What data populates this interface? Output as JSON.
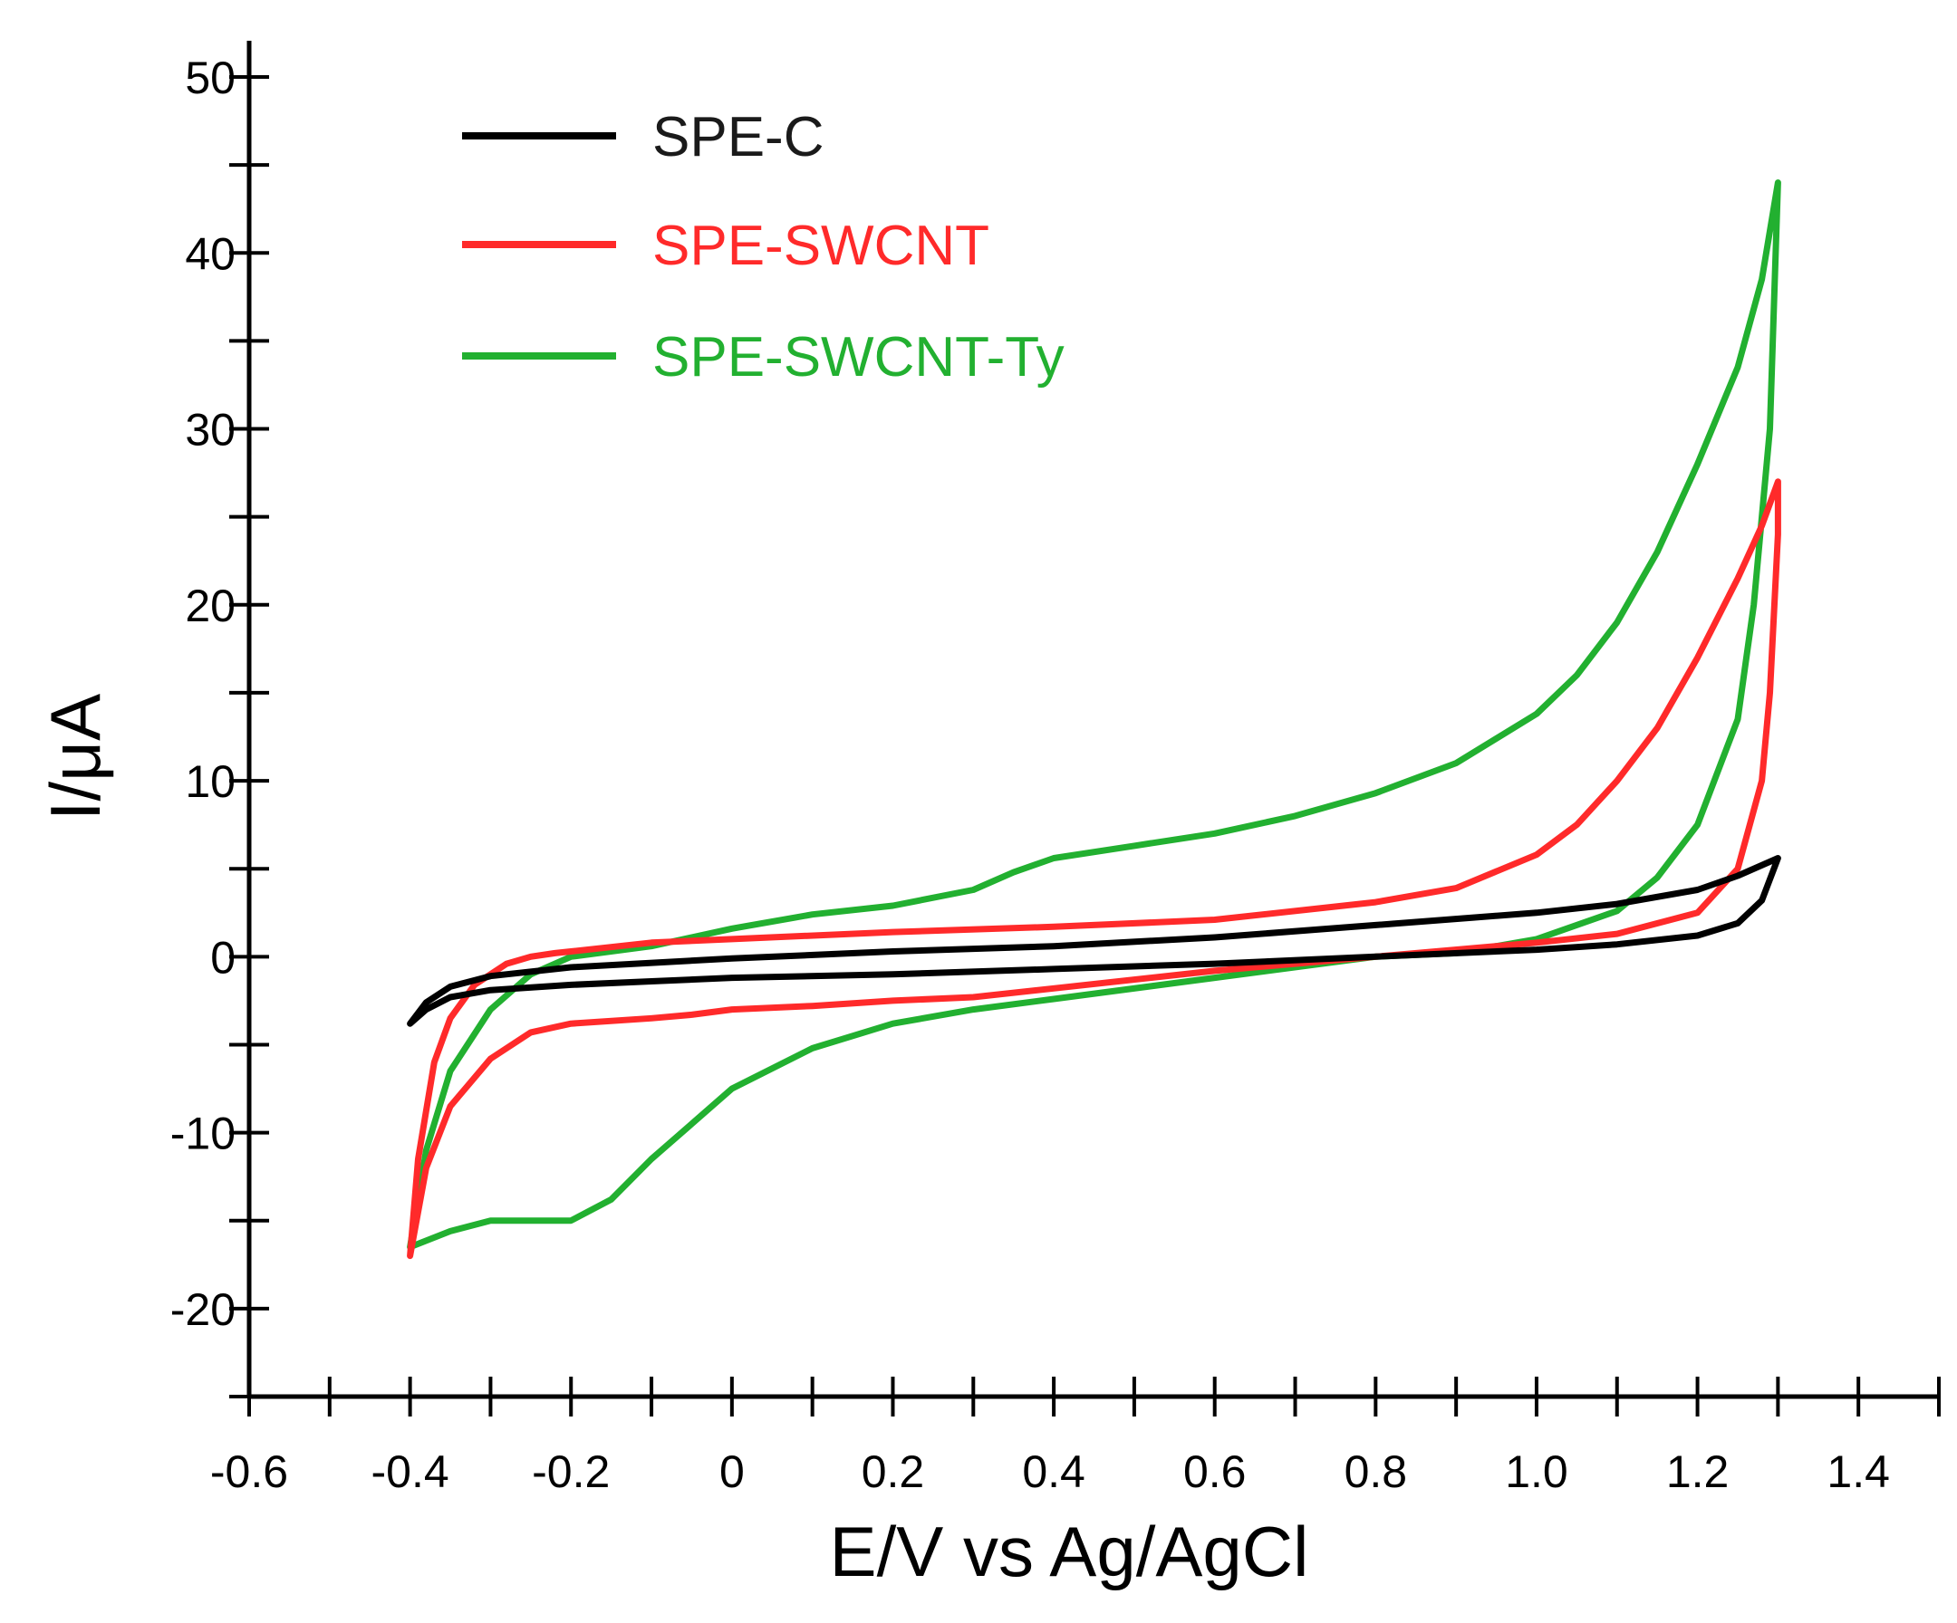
{
  "chart_data": {
    "type": "line",
    "title": "",
    "xlabel": "E/V vs Ag/AgCl",
    "ylabel": "I/μA",
    "xlim": [
      -0.6,
      1.5
    ],
    "ylim": [
      -25,
      50
    ],
    "x_ticks": [
      -0.6,
      -0.4,
      -0.2,
      0,
      0.2,
      0.4,
      0.6,
      0.8,
      1.0,
      1.2,
      1.4
    ],
    "x_tick_labels": [
      "-0.6",
      "-0.4",
      "-0.2",
      "0",
      "0.2",
      "0.4",
      "0.6",
      "0.8",
      "1.0",
      "1.2",
      "1.4"
    ],
    "x_minor_ticks": [
      -0.5,
      -0.3,
      -0.1,
      0.1,
      0.3,
      0.5,
      0.7,
      0.9,
      1.1,
      1.3,
      1.5
    ],
    "y_ticks": [
      -20,
      -10,
      0,
      10,
      20,
      30,
      40,
      50
    ],
    "y_tick_labels": [
      "-20",
      "-10",
      "0",
      "10",
      "20",
      "30",
      "40",
      "50"
    ],
    "y_minor_ticks": [
      -25,
      -15,
      -5,
      5,
      15,
      25,
      35,
      45
    ],
    "legend_position": "top-left",
    "series": [
      {
        "name": "SPE-C",
        "color": "#000000",
        "points": [
          [
            -0.4,
            -3.8
          ],
          [
            -0.38,
            -3.0
          ],
          [
            -0.35,
            -2.3
          ],
          [
            -0.3,
            -1.9
          ],
          [
            -0.2,
            -1.6
          ],
          [
            -0.1,
            -1.4
          ],
          [
            0.0,
            -1.2
          ],
          [
            0.2,
            -1.0
          ],
          [
            0.4,
            -0.7
          ],
          [
            0.6,
            -0.4
          ],
          [
            0.8,
            0.0
          ],
          [
            1.0,
            0.4
          ],
          [
            1.1,
            0.7
          ],
          [
            1.2,
            1.2
          ],
          [
            1.25,
            1.9
          ],
          [
            1.28,
            3.2
          ],
          [
            1.3,
            5.6
          ],
          [
            1.25,
            4.6
          ],
          [
            1.2,
            3.8
          ],
          [
            1.1,
            3.0
          ],
          [
            1.0,
            2.5
          ],
          [
            0.8,
            1.8
          ],
          [
            0.6,
            1.1
          ],
          [
            0.4,
            0.6
          ],
          [
            0.2,
            0.3
          ],
          [
            0.0,
            -0.1
          ],
          [
            -0.2,
            -0.6
          ],
          [
            -0.3,
            -1.1
          ],
          [
            -0.35,
            -1.7
          ],
          [
            -0.38,
            -2.6
          ],
          [
            -0.4,
            -3.8
          ]
        ]
      },
      {
        "name": "SPE-SWCNT",
        "color": "#ff2a2a",
        "points": [
          [
            -0.4,
            -17.0
          ],
          [
            -0.39,
            -11.5
          ],
          [
            -0.37,
            -6.0
          ],
          [
            -0.35,
            -3.5
          ],
          [
            -0.32,
            -1.6
          ],
          [
            -0.28,
            -0.4
          ],
          [
            -0.25,
            0.0
          ],
          [
            -0.22,
            0.2
          ],
          [
            -0.2,
            0.3
          ],
          [
            -0.1,
            0.8
          ],
          [
            0.0,
            1.0
          ],
          [
            0.2,
            1.4
          ],
          [
            0.4,
            1.7
          ],
          [
            0.6,
            2.1
          ],
          [
            0.8,
            3.1
          ],
          [
            0.9,
            3.9
          ],
          [
            1.0,
            5.8
          ],
          [
            1.05,
            7.5
          ],
          [
            1.1,
            10.0
          ],
          [
            1.15,
            13.0
          ],
          [
            1.2,
            17.0
          ],
          [
            1.25,
            21.5
          ],
          [
            1.28,
            24.5
          ],
          [
            1.3,
            27.0
          ],
          [
            1.3,
            24.0
          ],
          [
            1.29,
            15.0
          ],
          [
            1.28,
            10.0
          ],
          [
            1.25,
            5.0
          ],
          [
            1.2,
            2.5
          ],
          [
            1.1,
            1.3
          ],
          [
            1.0,
            0.8
          ],
          [
            0.8,
            0.0
          ],
          [
            0.6,
            -0.8
          ],
          [
            0.4,
            -1.8
          ],
          [
            0.3,
            -2.3
          ],
          [
            0.2,
            -2.5
          ],
          [
            0.1,
            -2.8
          ],
          [
            0.0,
            -3.0
          ],
          [
            -0.05,
            -3.3
          ],
          [
            -0.1,
            -3.5
          ],
          [
            -0.2,
            -3.8
          ],
          [
            -0.25,
            -4.3
          ],
          [
            -0.3,
            -5.8
          ],
          [
            -0.35,
            -8.5
          ],
          [
            -0.38,
            -12.0
          ],
          [
            -0.4,
            -17.0
          ]
        ]
      },
      {
        "name": "SPE-SWCNT-Ty",
        "color": "#22b030",
        "points": [
          [
            -0.4,
            -16.5
          ],
          [
            -0.38,
            -11.0
          ],
          [
            -0.35,
            -6.5
          ],
          [
            -0.3,
            -3.0
          ],
          [
            -0.25,
            -1.0
          ],
          [
            -0.2,
            0.0
          ],
          [
            -0.1,
            0.6
          ],
          [
            0.0,
            1.6
          ],
          [
            0.1,
            2.4
          ],
          [
            0.2,
            2.9
          ],
          [
            0.3,
            3.8
          ],
          [
            0.35,
            4.8
          ],
          [
            0.4,
            5.6
          ],
          [
            0.5,
            6.3
          ],
          [
            0.6,
            7.0
          ],
          [
            0.7,
            8.0
          ],
          [
            0.8,
            9.3
          ],
          [
            0.9,
            11.0
          ],
          [
            1.0,
            13.8
          ],
          [
            1.05,
            16.0
          ],
          [
            1.1,
            19.0
          ],
          [
            1.15,
            23.0
          ],
          [
            1.2,
            28.0
          ],
          [
            1.25,
            33.5
          ],
          [
            1.28,
            38.5
          ],
          [
            1.3,
            44.0
          ],
          [
            1.29,
            30.0
          ],
          [
            1.27,
            20.0
          ],
          [
            1.25,
            13.5
          ],
          [
            1.2,
            7.5
          ],
          [
            1.15,
            4.5
          ],
          [
            1.1,
            2.6
          ],
          [
            1.0,
            1.0
          ],
          [
            0.9,
            0.2
          ],
          [
            0.8,
            0.0
          ],
          [
            0.6,
            -1.2
          ],
          [
            0.4,
            -2.4
          ],
          [
            0.3,
            -3.0
          ],
          [
            0.2,
            -3.8
          ],
          [
            0.1,
            -5.2
          ],
          [
            0.0,
            -7.5
          ],
          [
            -0.05,
            -9.5
          ],
          [
            -0.1,
            -11.5
          ],
          [
            -0.15,
            -13.8
          ],
          [
            -0.2,
            -15.0
          ],
          [
            -0.25,
            -15.0
          ],
          [
            -0.3,
            -15.0
          ],
          [
            -0.35,
            -15.6
          ],
          [
            -0.4,
            -16.5
          ]
        ]
      }
    ]
  }
}
